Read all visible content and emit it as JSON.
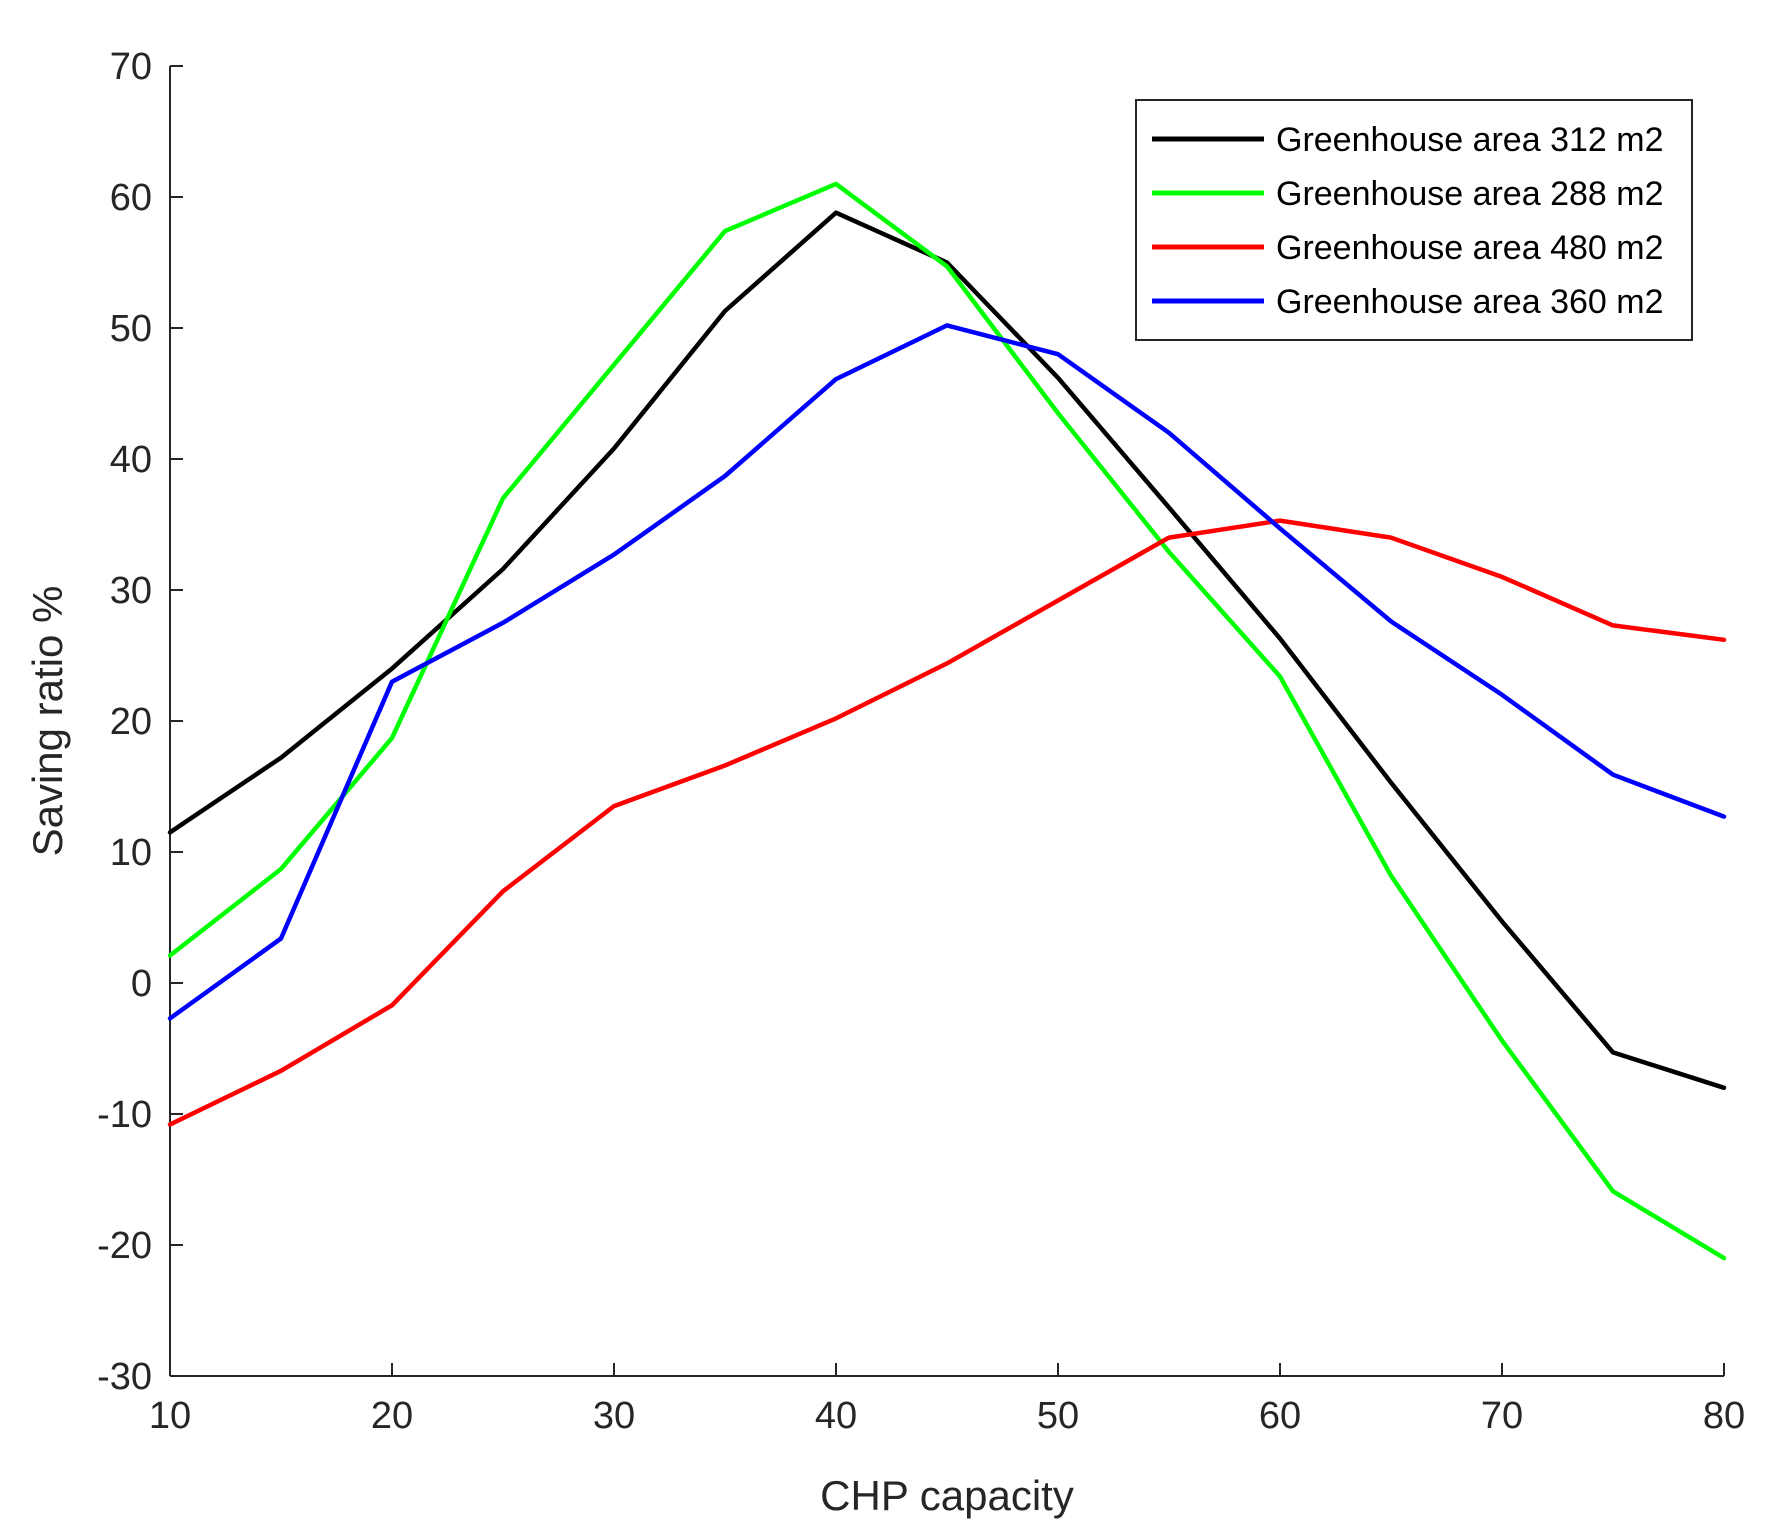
{
  "chart_data": {
    "type": "line",
    "title": "",
    "xlabel": "CHP capacity",
    "ylabel": "Saving ratio %",
    "xlim": [
      10,
      80
    ],
    "ylim": [
      -30,
      70
    ],
    "xticks": [
      10,
      20,
      30,
      40,
      50,
      60,
      70,
      80
    ],
    "yticks": [
      -30,
      -20,
      -10,
      0,
      10,
      20,
      30,
      40,
      50,
      60,
      70
    ],
    "xtick_labels": [
      "10",
      "20",
      "30",
      "40",
      "50",
      "60",
      "70",
      "80"
    ],
    "ytick_labels": [
      "-30",
      "-20",
      "-10",
      "0",
      "10",
      "20",
      "30",
      "40",
      "50",
      "60",
      "70"
    ],
    "grid": false,
    "legend_position": "top-right",
    "x": [
      10,
      15,
      20,
      25,
      30,
      35,
      40,
      45,
      50,
      55,
      60,
      65,
      70,
      75,
      80
    ],
    "series": [
      {
        "name": "Greenhouse area 312 m2",
        "color": "#000000",
        "values": [
          11.5,
          17.2,
          24.0,
          31.6,
          40.8,
          51.3,
          58.8,
          55.0,
          46.2,
          36.3,
          26.3,
          15.3,
          4.7,
          -5.3,
          -8.0
        ]
      },
      {
        "name": "Greenhouse area 288 m2",
        "color": "#00ff00",
        "values": [
          2.1,
          8.7,
          18.7,
          37.0,
          47.2,
          57.4,
          61.0,
          54.7,
          43.5,
          32.9,
          23.4,
          8.2,
          -4.4,
          -15.9,
          -21.0
        ]
      },
      {
        "name": "Greenhouse area 480 m2",
        "color": "#ff0000",
        "values": [
          -10.8,
          -6.7,
          -1.7,
          7.0,
          13.5,
          16.6,
          20.2,
          24.4,
          29.2,
          34.0,
          35.3,
          34.0,
          31.0,
          27.3,
          26.2
        ]
      },
      {
        "name": "Greenhouse area 360 m2",
        "color": "#0000ff",
        "values": [
          -2.7,
          3.4,
          23.0,
          27.5,
          32.7,
          38.7,
          46.1,
          50.2,
          48.0,
          42.0,
          34.7,
          27.6,
          22.0,
          15.9,
          12.7
        ]
      }
    ]
  }
}
